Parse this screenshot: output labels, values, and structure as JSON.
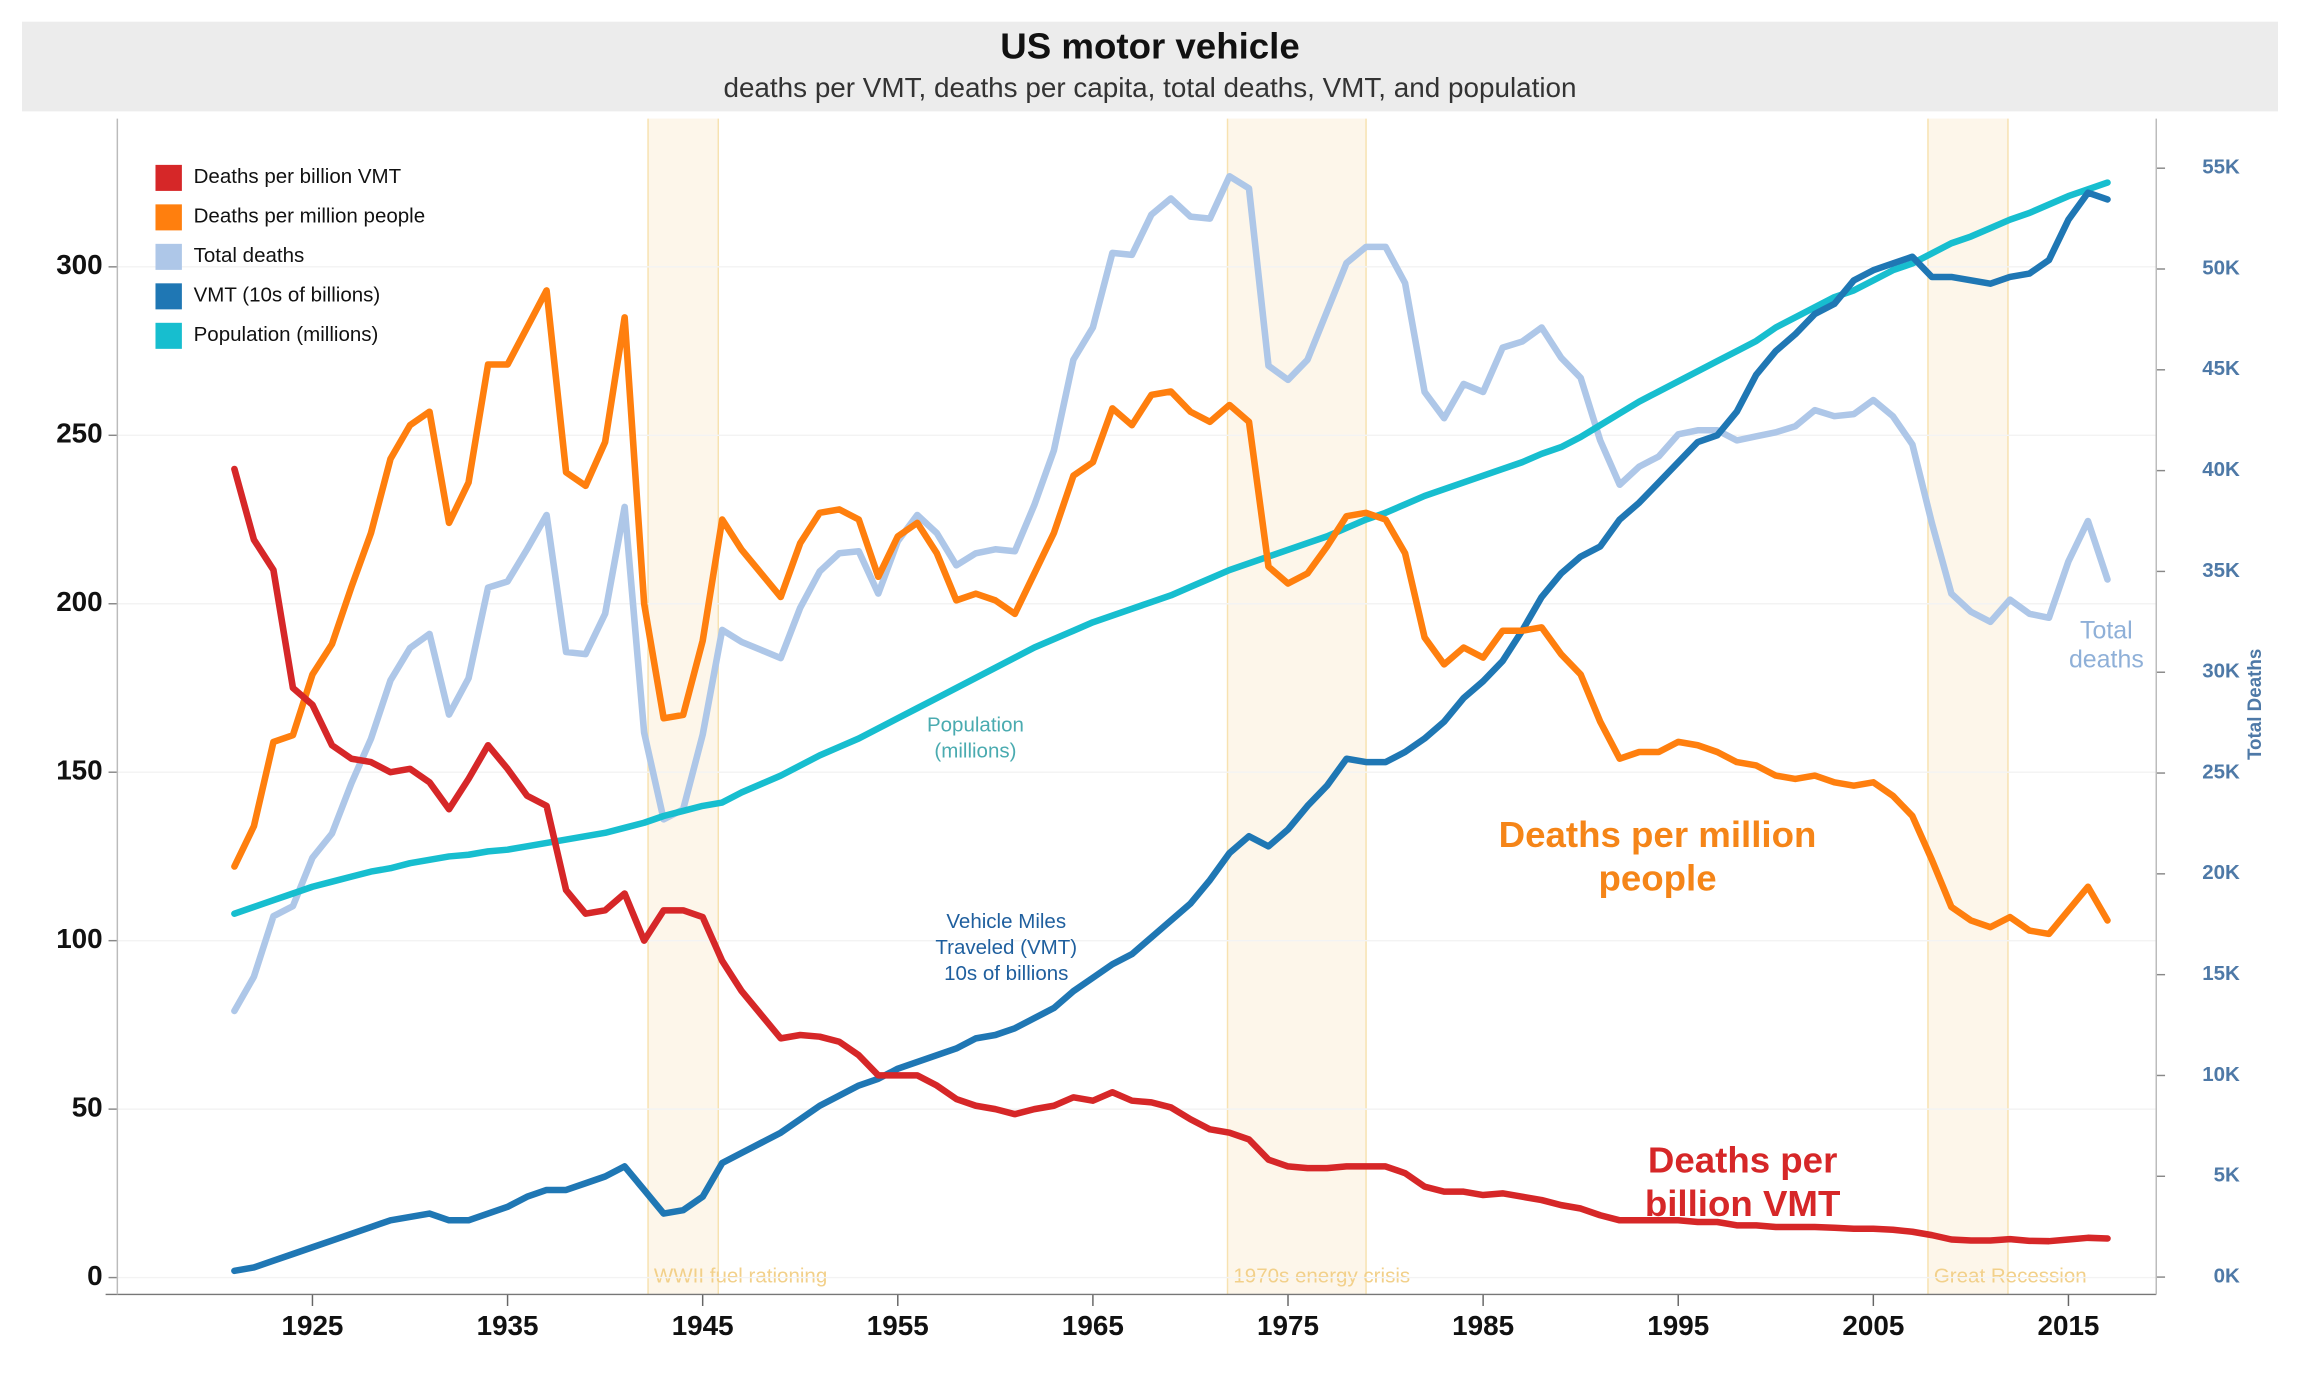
{
  "chart_data": {
    "type": "line",
    "title": "US motor vehicle",
    "subtitle": "deaths per VMT, deaths per capita, total deaths, VMT, and population",
    "y2_label": "Total Deaths",
    "grid": true,
    "legend": "top-left",
    "x": [
      1921,
      1922,
      1923,
      1924,
      1925,
      1926,
      1927,
      1928,
      1929,
      1930,
      1931,
      1932,
      1933,
      1934,
      1935,
      1936,
      1937,
      1938,
      1939,
      1940,
      1941,
      1942,
      1943,
      1944,
      1945,
      1946,
      1947,
      1948,
      1949,
      1950,
      1951,
      1952,
      1953,
      1954,
      1955,
      1956,
      1957,
      1958,
      1959,
      1960,
      1961,
      1962,
      1963,
      1964,
      1965,
      1966,
      1967,
      1968,
      1969,
      1970,
      1971,
      1972,
      1973,
      1974,
      1975,
      1976,
      1977,
      1978,
      1979,
      1980,
      1981,
      1982,
      1983,
      1984,
      1985,
      1986,
      1987,
      1988,
      1989,
      1990,
      1991,
      1992,
      1993,
      1994,
      1995,
      1996,
      1997,
      1998,
      1999,
      2000,
      2001,
      2002,
      2003,
      2004,
      2005,
      2006,
      2007,
      2008,
      2009,
      2010,
      2011,
      2012,
      2013,
      2014,
      2015,
      2016,
      2017
    ],
    "xlim": [
      1915,
      2019.5
    ],
    "xticks": [
      1925,
      1935,
      1945,
      1955,
      1965,
      1975,
      1985,
      1995,
      2005,
      2015
    ],
    "ylim": [
      -5,
      344
    ],
    "yticks": [
      0,
      50,
      100,
      150,
      200,
      250,
      300
    ],
    "y2lim": [
      -860,
      57460
    ],
    "y2ticks": [
      {
        "value": 0,
        "label": "0K"
      },
      {
        "value": 5000,
        "label": "5K"
      },
      {
        "value": 10000,
        "label": "10K"
      },
      {
        "value": 15000,
        "label": "15K"
      },
      {
        "value": 20000,
        "label": "20K"
      },
      {
        "value": 25000,
        "label": "25K"
      },
      {
        "value": 30000,
        "label": "30K"
      },
      {
        "value": 35000,
        "label": "35K"
      },
      {
        "value": 40000,
        "label": "40K"
      },
      {
        "value": 45000,
        "label": "45K"
      },
      {
        "value": 50000,
        "label": "50K"
      },
      {
        "value": 55000,
        "label": "55K"
      }
    ],
    "series": [
      {
        "name": "Deaths per billion VMT",
        "color": "#d62728",
        "values": [
          240,
          219,
          210,
          175,
          170,
          158,
          154,
          153,
          150,
          151,
          147,
          139,
          148,
          158,
          151,
          143,
          140,
          115,
          108,
          109,
          114,
          100,
          109,
          109,
          107,
          94,
          85,
          78,
          71,
          72,
          71.5,
          70,
          66,
          60,
          60,
          60,
          57,
          53,
          51,
          50,
          48.5,
          50,
          51,
          53.5,
          52.5,
          55,
          52.5,
          52,
          50.5,
          47,
          44,
          43,
          41,
          35,
          33,
          32.5,
          32.5,
          33,
          33,
          33,
          31,
          27,
          25.5,
          25.5,
          24.5,
          25,
          24,
          23,
          21.5,
          20.5,
          18.5,
          17,
          17,
          17,
          17,
          16.5,
          16.5,
          15.5,
          15.5,
          15,
          15,
          15,
          14.8,
          14.5,
          14.5,
          14.2,
          13.6,
          12.6,
          11.3,
          11,
          11,
          11.4,
          10.9,
          10.8,
          11.3,
          11.8,
          11.6
        ]
      },
      {
        "name": "Deaths per million people",
        "color": "#ff7f0e",
        "values": [
          122,
          134,
          159,
          161,
          179,
          188,
          205,
          221,
          243,
          253,
          257,
          224,
          236,
          271,
          271,
          282,
          293,
          239,
          235,
          248,
          285,
          200,
          166,
          167,
          189,
          225,
          216,
          209,
          202,
          218,
          227,
          228,
          225,
          208,
          220,
          224,
          215,
          201,
          203,
          201,
          197,
          209,
          221,
          238,
          242,
          258,
          253,
          262,
          263,
          257,
          254,
          259,
          254,
          211,
          206,
          209,
          217,
          226,
          227,
          225,
          215,
          190,
          182,
          187,
          184,
          192,
          192,
          193,
          185,
          179,
          165,
          154,
          156,
          156,
          159,
          158,
          156,
          153,
          152,
          149,
          148,
          149,
          147,
          146,
          147,
          143,
          137,
          124,
          110,
          106,
          104,
          107,
          103,
          102,
          109,
          116,
          106
        ]
      },
      {
        "name": "Total deaths",
        "color": "#aec7e8",
        "axis": "y2",
        "values": [
          13200,
          14900,
          17900,
          18400,
          20800,
          22000,
          24500,
          26700,
          29600,
          31200,
          31900,
          27900,
          29700,
          34200,
          34500,
          36100,
          37800,
          31000,
          30900,
          32900,
          38200,
          27000,
          22700,
          23200,
          26900,
          32100,
          31500,
          31100,
          30700,
          33200,
          35000,
          35900,
          36000,
          33900,
          36500,
          37800,
          36900,
          35300,
          35900,
          36100,
          36000,
          38300,
          41000,
          45500,
          47100,
          50800,
          50700,
          52700,
          53500,
          52600,
          52500,
          54600,
          54000,
          45200,
          44500,
          45500,
          47900,
          50300,
          51100,
          51100,
          49300,
          43900,
          42600,
          44300,
          43900,
          46100,
          46400,
          47100,
          45600,
          44600,
          41500,
          39300,
          40200,
          40700,
          41800,
          42000,
          42000,
          41500,
          41700,
          41900,
          42200,
          43000,
          42700,
          42800,
          43500,
          42700,
          41300,
          37400,
          33900,
          33000,
          32500,
          33600,
          32900,
          32700,
          35500,
          37500,
          34600
        ]
      },
      {
        "name": "VMT (10s of billions)",
        "color": "#1f77b4",
        "values": [
          2,
          3,
          5,
          7,
          9,
          11,
          13,
          15,
          17,
          18,
          19,
          17,
          17,
          19,
          21,
          24,
          26,
          26,
          28,
          30,
          33,
          26,
          19,
          20,
          24,
          34,
          37,
          40,
          43,
          47,
          51,
          54,
          57,
          59,
          62,
          64,
          66,
          68,
          71,
          72,
          74,
          77,
          80,
          85,
          89,
          93,
          96,
          101,
          106,
          111,
          118,
          126,
          131,
          128,
          133,
          140,
          146,
          154,
          153,
          153,
          156,
          160,
          165,
          172,
          177,
          183,
          192,
          202,
          209,
          214,
          217,
          225,
          230,
          236,
          242,
          248,
          250,
          257,
          268,
          275,
          280,
          286,
          289,
          296,
          299,
          301,
          303,
          297,
          297,
          296,
          295,
          297,
          298,
          302,
          314,
          322,
          320
        ]
      },
      {
        "name": "Population (millions)",
        "color": "#17becf",
        "values": [
          108,
          110,
          112,
          114,
          116,
          117.5,
          119,
          120.5,
          121.5,
          123,
          124,
          125,
          125.5,
          126.5,
          127,
          128,
          129,
          130,
          131,
          132,
          133.5,
          135,
          137,
          138.5,
          140,
          141,
          144,
          146.5,
          149,
          152,
          155,
          157.5,
          160,
          163,
          166,
          169,
          172,
          175,
          178,
          181,
          184,
          187,
          189.5,
          192,
          194.5,
          196.5,
          198.5,
          200.5,
          202.5,
          205,
          207.5,
          210,
          212,
          214,
          216,
          218,
          220,
          222.5,
          225,
          227,
          229.5,
          232,
          234,
          236,
          238,
          240,
          242,
          244.5,
          246.5,
          249.5,
          253,
          256.5,
          260,
          263,
          266,
          269,
          272,
          275,
          278,
          282,
          285,
          288,
          291,
          293,
          296,
          299,
          301,
          304,
          307,
          309,
          311.5,
          314,
          316,
          318.5,
          321,
          323,
          325
        ]
      }
    ],
    "bands": [
      {
        "label": "WWII fuel rationing",
        "start": 1942.2,
        "end": 1945.8
      },
      {
        "label": "1970s energy crisis",
        "start": 1971.9,
        "end": 1979
      },
      {
        "label": "Great Recession",
        "start": 2007.8,
        "end": 2011.9
      }
    ],
    "annotations": [
      {
        "text": [
          "Population",
          "(millions)"
        ],
        "color": "#4aabb0"
      },
      {
        "text": [
          "Vehicle Miles",
          "Traveled (VMT)",
          "10s of billions"
        ],
        "color": "#1f5f9e"
      },
      {
        "text": [
          "Deaths per million",
          "people"
        ],
        "color": "#f58518"
      },
      {
        "text": [
          "Deaths per",
          "billion VMT"
        ],
        "color": "#d62728"
      },
      {
        "text": [
          "Total",
          "deaths"
        ],
        "color": "#8fb0d8"
      }
    ]
  }
}
